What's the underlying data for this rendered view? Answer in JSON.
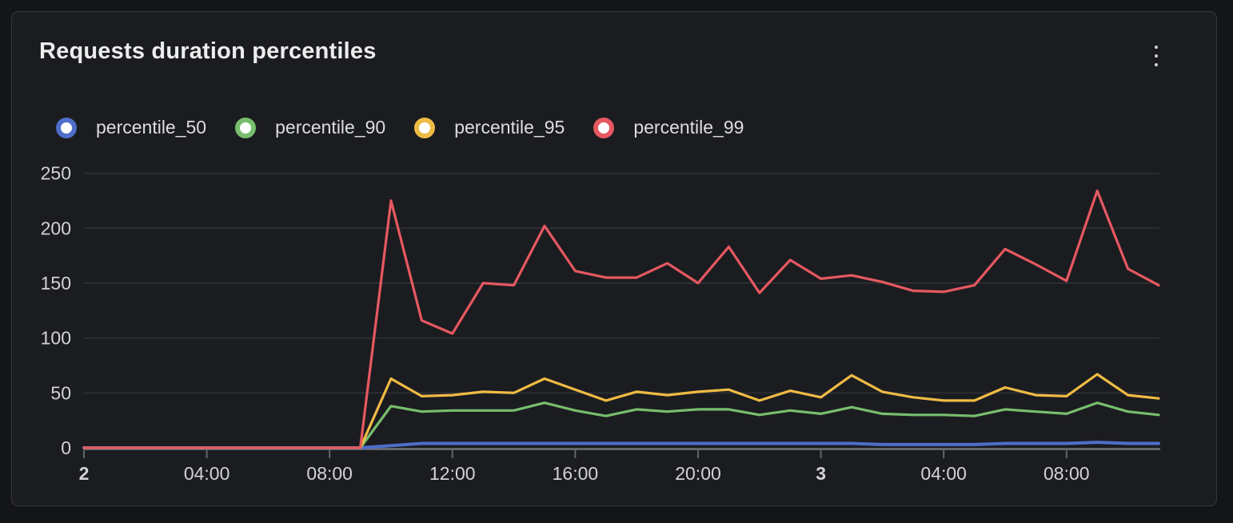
{
  "panel": {
    "title": "Requests duration percentiles",
    "menu_icon": "kebab-vertical-icon"
  },
  "theme": {
    "page_bg": "#141518",
    "panel_bg": "#1b1c20",
    "panel_border": "#35373c",
    "grid_color": "#2c2e32",
    "axis_line_color": "#70737a",
    "tick_color": "#62656b",
    "title_color": "#eceded",
    "axis_text_color": "#d2d3d5"
  },
  "chart_data": {
    "type": "line",
    "title": "Requests duration percentiles",
    "xlabel": "",
    "ylabel": "",
    "ylim": [
      0,
      250
    ],
    "yticks": [
      0,
      50,
      100,
      150,
      200,
      250
    ],
    "grid": "horizontal only",
    "legend_position": "top-left",
    "n_points": 36,
    "x_start": {
      "day_label": "2",
      "time": "00:00"
    },
    "x_interval_hours": 1,
    "x_end": {
      "day_label": "3",
      "time": "11:00"
    },
    "x_ticks": [
      {
        "index": 0,
        "label": "2",
        "bold": true
      },
      {
        "index": 4,
        "label": "04:00",
        "bold": false
      },
      {
        "index": 8,
        "label": "08:00",
        "bold": false
      },
      {
        "index": 12,
        "label": "12:00",
        "bold": false
      },
      {
        "index": 16,
        "label": "16:00",
        "bold": false
      },
      {
        "index": 20,
        "label": "20:00",
        "bold": false
      },
      {
        "index": 24,
        "label": "3",
        "bold": true
      },
      {
        "index": 28,
        "label": "04:00",
        "bold": false
      },
      {
        "index": 32,
        "label": "08:00",
        "bold": false
      }
    ],
    "series": [
      {
        "name": "percentile_50",
        "color": "#4d6fca",
        "width": 4,
        "values": [
          0,
          0,
          0,
          0,
          0,
          0,
          0,
          0,
          0,
          0,
          2,
          4,
          4,
          4,
          4,
          4,
          4,
          4,
          4,
          4,
          4,
          4,
          4,
          4,
          4,
          4,
          3,
          3,
          3,
          3,
          4,
          4,
          4,
          5,
          4,
          4
        ]
      },
      {
        "name": "percentile_90",
        "color": "#77be6d",
        "width": 3.2,
        "values": [
          0,
          0,
          0,
          0,
          0,
          0,
          0,
          0,
          0,
          0,
          38,
          33,
          34,
          34,
          34,
          41,
          34,
          29,
          35,
          33,
          35,
          35,
          30,
          34,
          31,
          37,
          31,
          30,
          30,
          29,
          35,
          33,
          31,
          41,
          33,
          30
        ]
      },
      {
        "name": "percentile_95",
        "color": "#efbb44",
        "width": 3.2,
        "values": [
          0,
          0,
          0,
          0,
          0,
          0,
          0,
          0,
          0,
          0,
          63,
          47,
          48,
          51,
          50,
          63,
          53,
          43,
          51,
          48,
          51,
          53,
          43,
          52,
          46,
          66,
          51,
          46,
          43,
          43,
          55,
          48,
          47,
          67,
          48,
          45
        ]
      },
      {
        "name": "percentile_99",
        "color": "#e65860",
        "width": 3.2,
        "values": [
          0,
          0,
          0,
          0,
          0,
          0,
          0,
          0,
          0,
          0,
          225,
          116,
          104,
          150,
          148,
          202,
          161,
          155,
          155,
          168,
          150,
          183,
          141,
          171,
          154,
          157,
          151,
          143,
          142,
          148,
          181,
          167,
          152,
          234,
          163,
          148
        ]
      }
    ]
  }
}
